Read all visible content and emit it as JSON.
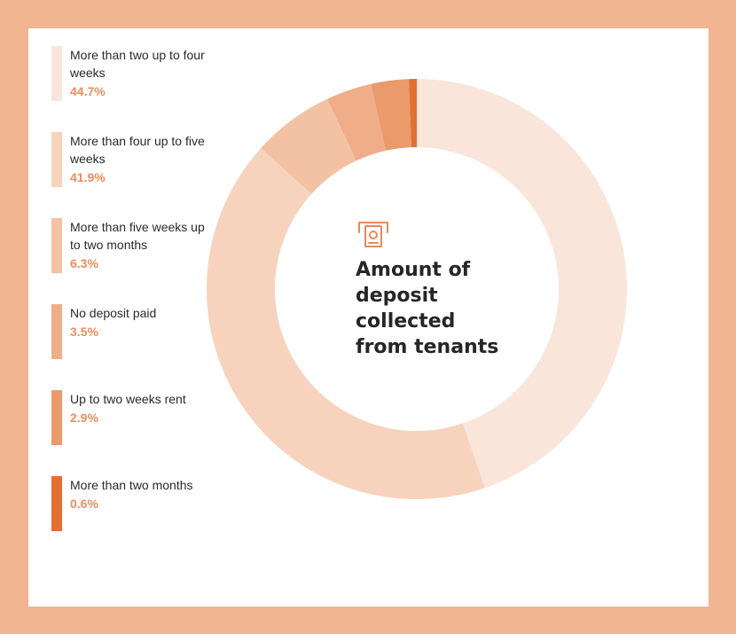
{
  "chart_data": {
    "type": "pie",
    "title": "Amount of deposit collected from tenants",
    "categories": [
      "More than two up to four weeks",
      "More than four up to five weeks",
      "More than five weeks up to two months",
      "No deposit paid",
      "Up to two weeks rent",
      "More than two months"
    ],
    "values": [
      44.7,
      41.9,
      6.3,
      3.5,
      2.9,
      0.6
    ],
    "legend_labels": [
      "More than two up to four weeks",
      "More than four up to five weeks",
      "More than five weeks up to two months",
      "No deposit paid",
      "Up to two weeks rent",
      "More than two months"
    ],
    "value_labels": [
      "44.7%",
      "41.9%",
      "6.3%",
      "3.5%",
      "2.9%",
      "0.6%"
    ],
    "colors": [
      "#fae5da",
      "#f7d3bd",
      "#f3c2a4",
      "#efad89",
      "#eb9a6c",
      "#e36f31"
    ],
    "legend_placement": "left",
    "donut": true
  },
  "colors": {
    "frame": "#f2b592",
    "card": "#ffffff",
    "percent_text": "#e98f5e",
    "icon": "#e58a5a"
  },
  "icon": "cash-deposit-icon"
}
